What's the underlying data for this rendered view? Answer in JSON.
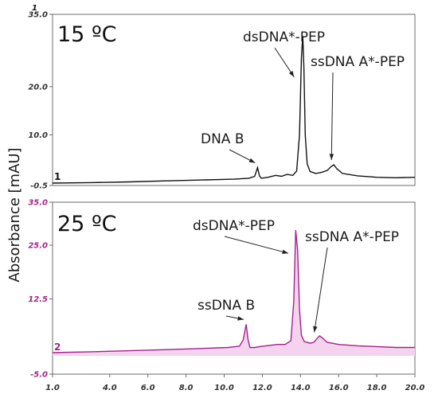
{
  "ylabel": "Absorbance [mAU]",
  "x_ticks": [
    "1.0",
    "4.0",
    "6.0",
    "8.0",
    "10.0",
    "12.0",
    "14.0",
    "16.0",
    "18.0",
    "20.0"
  ],
  "colors": {
    "top": "#111111",
    "bottom": "#a3238a",
    "bottom_fill": "#f4d3ee",
    "axis": "#555555"
  },
  "chart_data": [
    {
      "type": "line",
      "title": "15 ºC",
      "trace_label": "1",
      "corner_label": "1",
      "xlim": [
        1.0,
        20.0
      ],
      "ylim": [
        -0.5,
        35.0
      ],
      "y_ticks": [
        "35.0",
        "20.0",
        "10.0",
        "-0.5"
      ],
      "y_tick_values": [
        35.0,
        20.0,
        10.0,
        -0.5
      ],
      "x_tick_values": [
        1.0,
        4.0,
        6.0,
        8.0,
        10.0,
        12.0,
        14.0,
        16.0,
        18.0,
        20.0
      ],
      "series": [
        {
          "x": [
            1.0,
            3.0,
            5.0,
            7.0,
            9.0,
            10.5,
            11.3,
            11.6,
            11.75,
            11.85,
            11.95,
            12.3,
            12.7,
            13.0,
            13.3,
            13.6,
            13.8,
            13.95,
            14.05,
            14.12,
            14.18,
            14.25,
            14.35,
            14.5,
            14.8,
            15.1,
            15.4,
            15.6,
            15.75,
            15.9,
            16.2,
            17.0,
            18.0,
            19.0,
            20.0
          ],
          "y": [
            0.0,
            0.1,
            0.25,
            0.45,
            0.65,
            0.8,
            1.0,
            1.4,
            3.2,
            1.5,
            1.0,
            1.2,
            1.6,
            1.4,
            1.8,
            1.6,
            2.5,
            10.0,
            26.0,
            30.5,
            24.0,
            10.0,
            4.0,
            2.4,
            2.0,
            2.2,
            2.6,
            3.4,
            3.8,
            3.0,
            2.0,
            1.5,
            1.2,
            1.1,
            1.2
          ]
        }
      ],
      "annotations": [
        {
          "text": "DNA B",
          "x": 11.75,
          "y": 3.2
        },
        {
          "text": "dsDNA*-PEP",
          "x": 14.0,
          "y": 21.0
        },
        {
          "text": "ssDNA A*-PEP",
          "x": 15.75,
          "y": 3.8
        }
      ]
    },
    {
      "type": "line",
      "title": "25 ºC",
      "trace_label": "2",
      "xlim": [
        1.0,
        20.0
      ],
      "ylim": [
        -5.0,
        35.0
      ],
      "y_ticks": [
        "35.0",
        "25.0",
        "12.5",
        "-5.0"
      ],
      "y_tick_values": [
        35.0,
        25.0,
        12.5,
        -5.0
      ],
      "x_tick_values": [
        1.0,
        4.0,
        6.0,
        8.0,
        10.0,
        12.0,
        14.0,
        16.0,
        18.0,
        20.0
      ],
      "series": [
        {
          "x": [
            1.0,
            3.0,
            5.0,
            7.0,
            9.0,
            10.2,
            10.8,
            11.0,
            11.15,
            11.25,
            11.35,
            11.6,
            12.0,
            12.4,
            12.8,
            13.2,
            13.5,
            13.65,
            13.75,
            13.85,
            13.95,
            14.05,
            14.2,
            14.5,
            14.7,
            14.85,
            15.0,
            15.15,
            15.4,
            16.0,
            17.0,
            18.0,
            19.0,
            20.0
          ],
          "y": [
            0.0,
            0.2,
            0.45,
            0.7,
            1.0,
            1.2,
            1.5,
            3.0,
            6.6,
            3.0,
            1.2,
            1.2,
            1.5,
            1.7,
            1.9,
            1.9,
            2.8,
            12.0,
            28.5,
            24.0,
            10.0,
            4.0,
            2.6,
            2.2,
            2.4,
            3.2,
            3.9,
            3.4,
            2.4,
            1.9,
            1.6,
            1.4,
            1.2,
            1.2
          ]
        }
      ],
      "annotations": [
        {
          "text": "ssDNA B",
          "x": 11.15,
          "y": 6.6
        },
        {
          "text": "dsDNA*-PEP",
          "x": 13.7,
          "y": 22.0
        },
        {
          "text": "ssDNA A*-PEP",
          "x": 14.85,
          "y": 3.6
        }
      ]
    }
  ]
}
